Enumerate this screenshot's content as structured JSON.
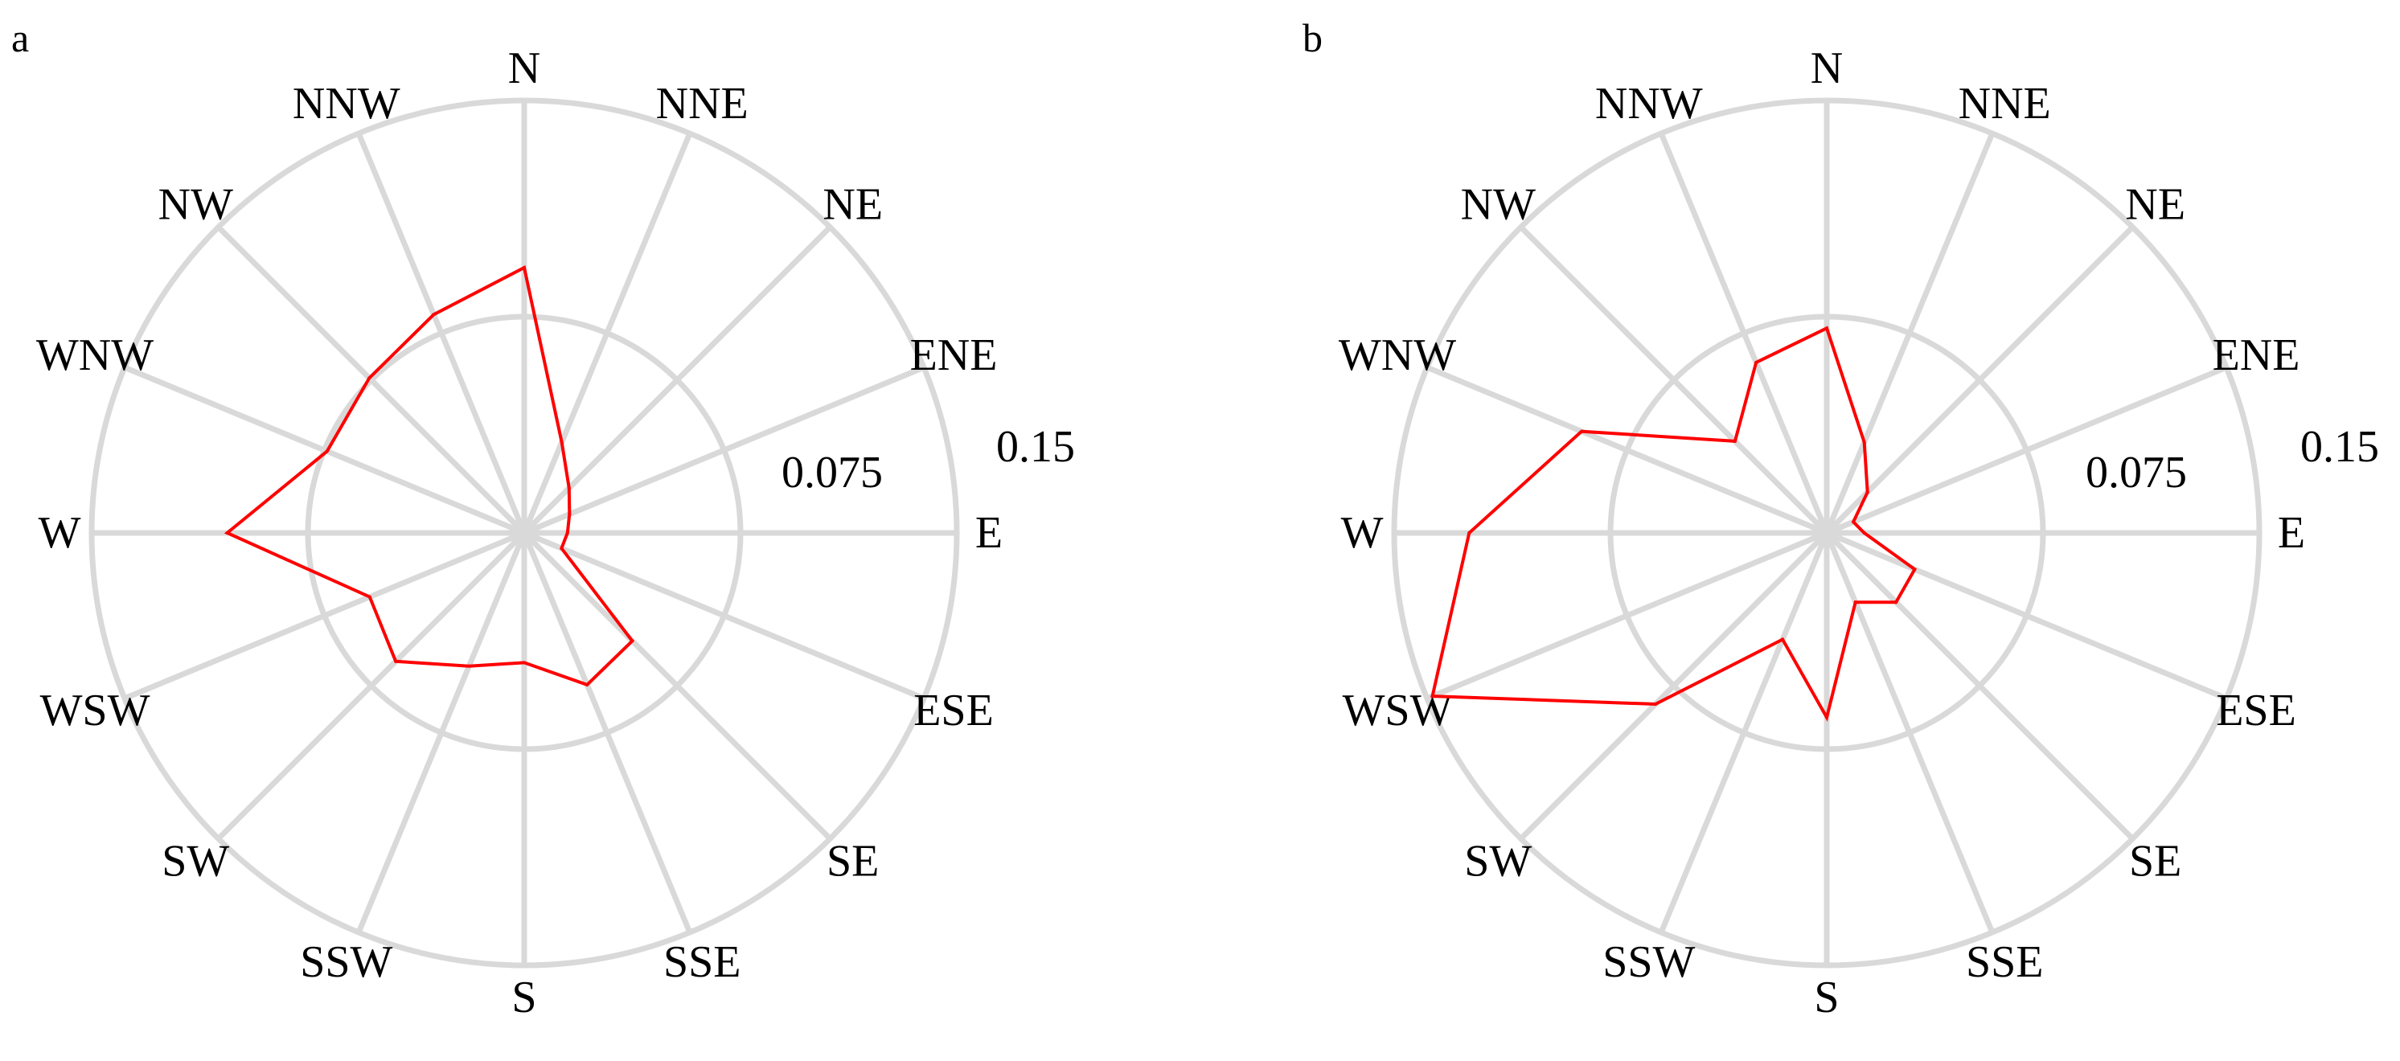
{
  "figure": {
    "panels": [
      "a",
      "b"
    ]
  },
  "chart_data": [
    {
      "type": "radar",
      "panel_label": "a",
      "directions": [
        "N",
        "NNE",
        "NE",
        "ENE",
        "E",
        "ESE",
        "SE",
        "SSE",
        "S",
        "SSW",
        "SW",
        "WSW",
        "W",
        "WNW",
        "NW",
        "NNW"
      ],
      "ring_values": [
        0.075,
        0.15
      ],
      "ring_labels": [
        "0.075",
        "0.15"
      ],
      "rmax": 0.15,
      "grid": true,
      "series": [
        {
          "color": "#ff0000",
          "values": [
            0.092,
            0.034,
            0.022,
            0.017,
            0.015,
            0.014,
            0.053,
            0.057,
            0.045,
            0.05,
            0.063,
            0.058,
            0.103,
            0.074,
            0.076,
            0.082
          ]
        }
      ]
    },
    {
      "type": "radar",
      "panel_label": "b",
      "directions": [
        "N",
        "NNE",
        "NE",
        "ENE",
        "E",
        "ESE",
        "SE",
        "SSE",
        "S",
        "SSW",
        "SW",
        "WSW",
        "W",
        "WNW",
        "NW",
        "NNW"
      ],
      "ring_values": [
        0.075,
        0.15
      ],
      "ring_labels": [
        "0.075",
        "0.15"
      ],
      "rmax": 0.15,
      "grid": true,
      "series": [
        {
          "color": "#ff0000",
          "values": [
            0.071,
            0.034,
            0.02,
            0.01,
            0.013,
            0.033,
            0.034,
            0.026,
            0.064,
            0.04,
            0.084,
            0.148,
            0.124,
            0.092,
            0.045,
            0.064
          ]
        }
      ]
    }
  ]
}
